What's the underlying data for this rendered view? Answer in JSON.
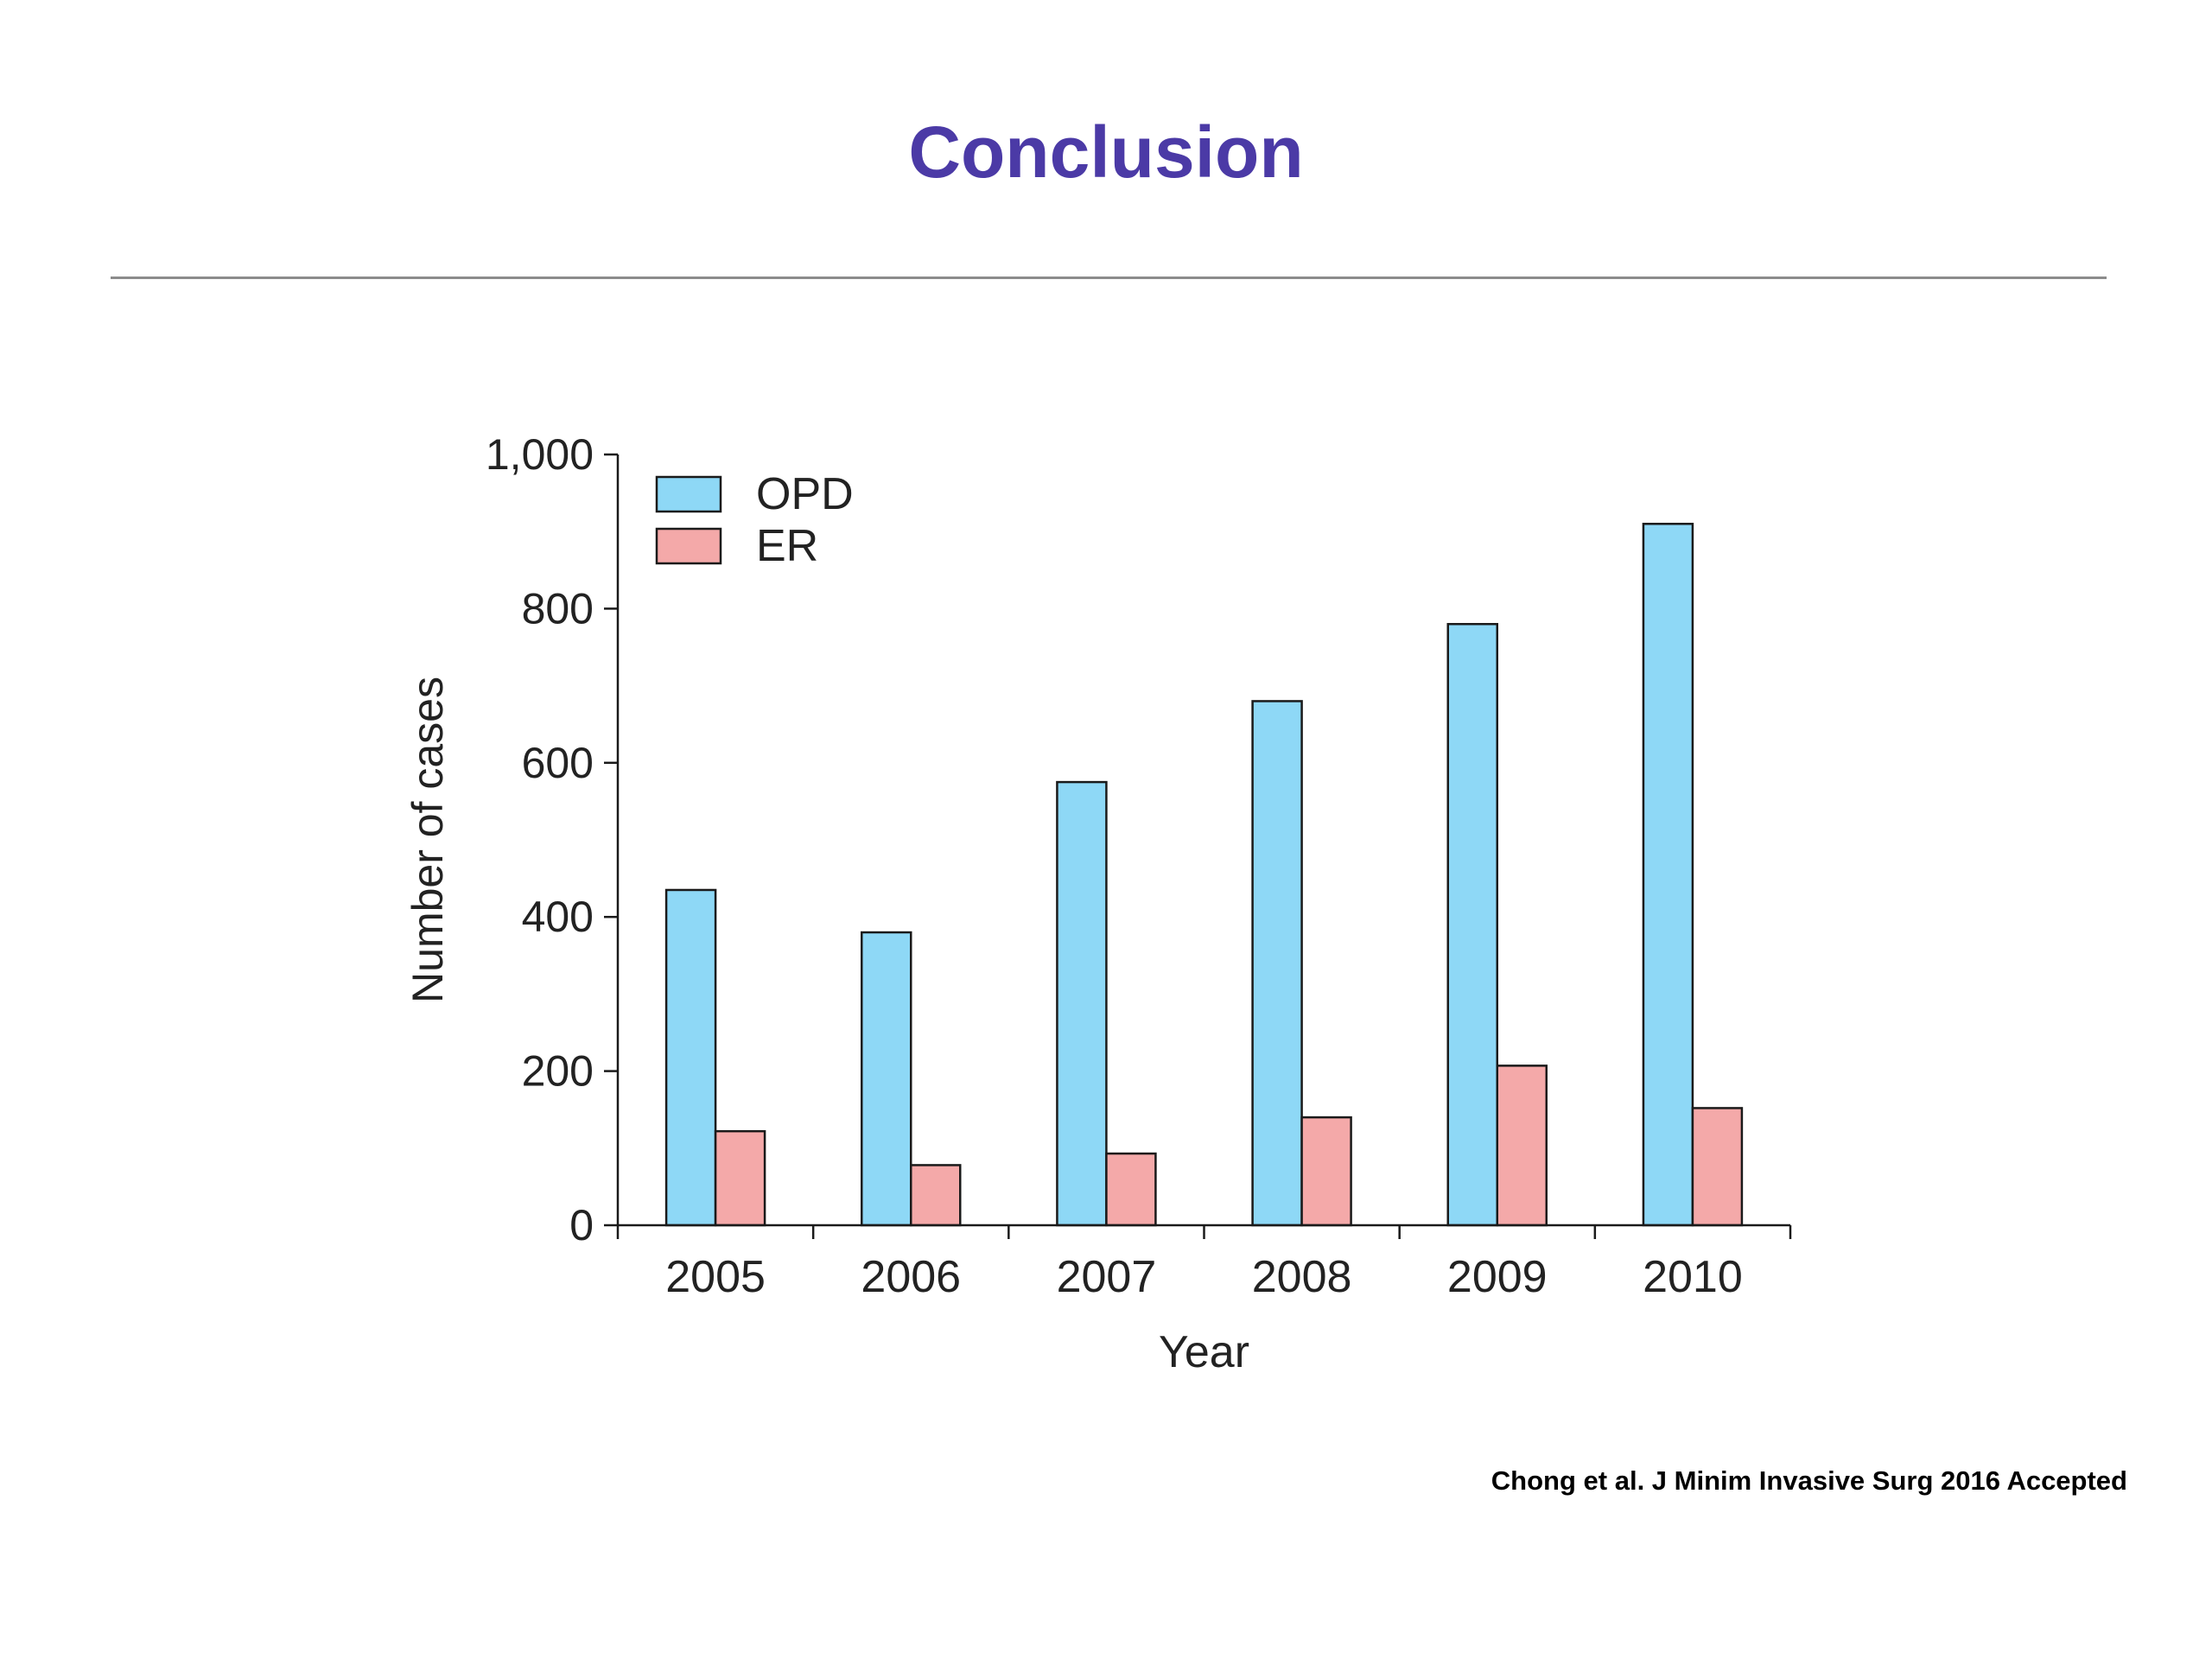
{
  "slide": {
    "title": "Conclusion",
    "citation": "Chong et al. J Minim Invasive Surg 2016 Accepted"
  },
  "colors": {
    "title": "#4b3aa6",
    "opd": "#8ed8f6",
    "er": "#f4a9a9",
    "outline": "#1a1a1a"
  },
  "chart_data": {
    "type": "bar",
    "title": "",
    "xlabel": "Year",
    "ylabel": "Number of cases",
    "categories": [
      "2005",
      "2006",
      "2007",
      "2008",
      "2009",
      "2010"
    ],
    "series": [
      {
        "name": "OPD",
        "color": "#8ed8f6",
        "values": [
          435,
          380,
          575,
          680,
          780,
          910
        ]
      },
      {
        "name": "ER",
        "color": "#f4a9a9",
        "values": [
          122,
          78,
          93,
          140,
          207,
          152
        ]
      }
    ],
    "ylim": [
      0,
      1000
    ],
    "yticks": [
      {
        "value": 0,
        "label": "0"
      },
      {
        "value": 200,
        "label": "200"
      },
      {
        "value": 400,
        "label": "400"
      },
      {
        "value": 600,
        "label": "600"
      },
      {
        "value": 800,
        "label": "800"
      },
      {
        "value": 1000,
        "label": "1,000"
      }
    ],
    "grid": false,
    "legend": "top-left"
  }
}
